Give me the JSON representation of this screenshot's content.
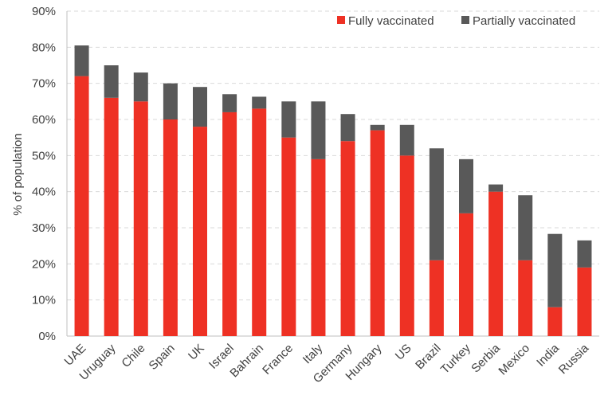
{
  "chart_data": {
    "type": "bar",
    "stacked": true,
    "title": "",
    "xlabel": "",
    "ylabel": "% of population",
    "ylim": [
      0,
      90
    ],
    "y_ticks": [
      "0%",
      "10%",
      "20%",
      "30%",
      "40%",
      "50%",
      "60%",
      "70%",
      "80%",
      "90%"
    ],
    "y_tick_values": [
      0,
      10,
      20,
      30,
      40,
      50,
      60,
      70,
      80,
      90
    ],
    "grid": true,
    "legend_position": "top-right",
    "categories": [
      "UAE",
      "Uruguay",
      "Chile",
      "Spain",
      "UK",
      "Israel",
      "Bahrain",
      "France",
      "Italy",
      "Germany",
      "Hungary",
      "US",
      "Brazil",
      "Turkey",
      "Serbia",
      "Mexico",
      "India",
      "Russia"
    ],
    "series": [
      {
        "name": "Fully vaccinated",
        "color": "#ee3124",
        "values": [
          72,
          66,
          65,
          60,
          58,
          62,
          63,
          55,
          49,
          54,
          57,
          50,
          21,
          34,
          40,
          21,
          8,
          19
        ]
      },
      {
        "name": "Partially vaccinated",
        "color": "#595959",
        "values": [
          8.5,
          9,
          8,
          10,
          11,
          5,
          3.3,
          10,
          16,
          7.5,
          1.5,
          8.5,
          31,
          15,
          2,
          18,
          20.3,
          7.5
        ]
      }
    ]
  }
}
